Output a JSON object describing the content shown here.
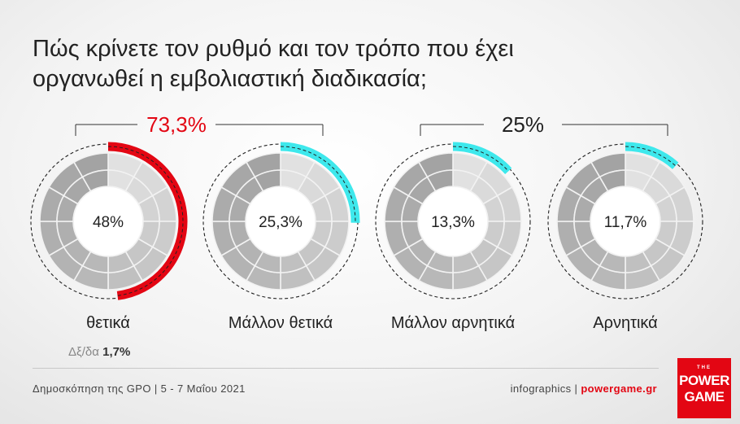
{
  "title": "Πώς κρίνετε τον ρυθμό και τον τρόπο που έχει οργανωθεί η εμβολιαστική διαδικασία;",
  "chart_data": {
    "type": "pie",
    "title": "Πώς κρίνετε τον ρυθμό και τον τρόπο που έχει οργανωθεί η εμβολιαστική διαδικασία;",
    "categories": [
      "θετικά",
      "Μάλλον θετικά",
      "Μάλλον αρνητικά",
      "Αρνητικά"
    ],
    "values": [
      48,
      25.3,
      13.3,
      11.7
    ],
    "value_labels": [
      "48%",
      "25,3%",
      "13,3%",
      "11,7%"
    ],
    "groups": [
      {
        "label": "73,3%",
        "value": 73.3,
        "members": [
          0,
          1
        ]
      },
      {
        "label": "25%",
        "value": 25,
        "members": [
          2,
          3
        ]
      }
    ],
    "other": {
      "label": "Δξ/δα",
      "value_label": "1,7%",
      "value": 1.7
    },
    "colors": {
      "positive": "#e30613",
      "rest": "#3ee8ec",
      "group_positive": "#e30613",
      "group_negative": "#222222"
    }
  },
  "footer": {
    "source": "Δημοσκόπηση της GPO | 5 - 7 Μαΐου 2021",
    "credit_prefix": "infographics | ",
    "credit_brand": "powergame.gr"
  },
  "logo": {
    "the": "THE",
    "line1": "POWER",
    "line2": "GAME"
  }
}
